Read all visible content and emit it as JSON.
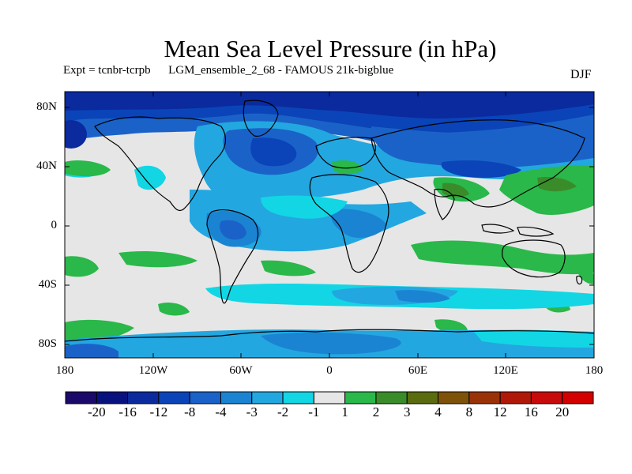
{
  "title": "Mean Sea Level Pressure (in hPa)",
  "subtitle": "Expt = tcnbr-tcrpb      LGM_ensemble_2_68 - FAMOUS 21k-bigblue",
  "season": "DJF",
  "lat_labels": [
    "80N",
    "40N",
    "0",
    "40S",
    "80S"
  ],
  "lon_labels": [
    "180",
    "120W",
    "60W",
    "0",
    "60E",
    "120E",
    "180"
  ],
  "colorbar": {
    "labels": [
      "-20",
      "-16",
      "-12",
      "-8",
      "-4",
      "-3",
      "-2",
      "-1",
      "1",
      "2",
      "3",
      "4",
      "8",
      "12",
      "16",
      "20"
    ],
    "colors": [
      "#1c0a6b",
      "#08127e",
      "#0a2a9e",
      "#0a44b8",
      "#1a62c8",
      "#1b84d2",
      "#23a7e0",
      "#12d6e4",
      "#e6e6e6",
      "#2ab84a",
      "#3a8c2a",
      "#5a6b10",
      "#7e5208",
      "#9a3208",
      "#b01808",
      "#c80a0a",
      "#d40000"
    ]
  },
  "colors": {
    "neutral": "#e6e6e6",
    "coast": "#000000"
  }
}
